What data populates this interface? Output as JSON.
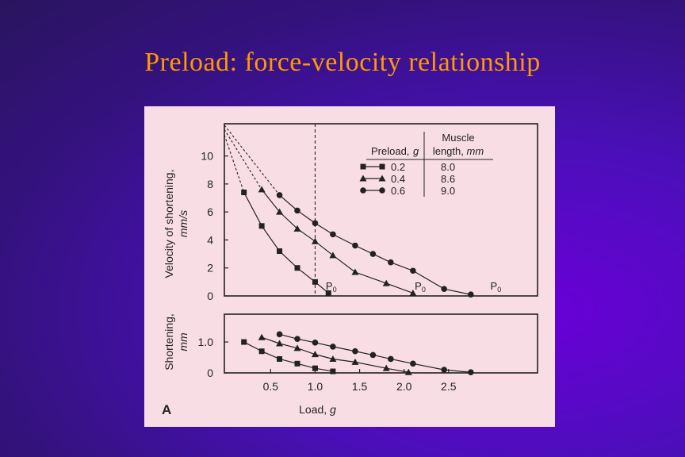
{
  "slide": {
    "title": "Preload: force-velocity relationship"
  },
  "figure": {
    "panel_label": "A"
  },
  "colors": {
    "title": "#ff9900",
    "panel": "#f9dde5",
    "ink": "#222222"
  },
  "chart_data": [
    {
      "type": "line",
      "ylabel_line1": "Velocity of shortening,",
      "ylabel_line2": "mm/s",
      "ylim": [
        0,
        12.3
      ],
      "yticks": [
        0,
        2,
        4,
        6,
        8,
        10
      ],
      "xlim": [
        -0.02,
        3.5
      ],
      "reference_line_x": 1.0,
      "legend": {
        "placement": "top-right",
        "col1_header": "Preload, g",
        "col2_header_line1": "Muscle",
        "col2_header_line2": "length, mm",
        "rows": [
          {
            "preload": "0.2",
            "length": "8.0"
          },
          {
            "preload": "0.4",
            "length": "8.6"
          },
          {
            "preload": "0.6",
            "length": "9.0"
          }
        ]
      },
      "annotations": [
        {
          "text": "P",
          "sub": "0",
          "x": 1.12,
          "y": 0.45
        },
        {
          "text": "P",
          "sub": "0",
          "x": 2.12,
          "y": 0.45
        },
        {
          "text": "P",
          "sub": "0",
          "x": 2.97,
          "y": 0.45
        }
      ],
      "series": [
        {
          "marker": "square",
          "extrapolated": [
            [
              -0.02,
              11.5
            ],
            [
              0.2,
              7.4
            ]
          ],
          "x": [
            0.2,
            0.4,
            0.6,
            0.8,
            1.0,
            1.15
          ],
          "y": [
            7.4,
            5.0,
            3.2,
            2.0,
            1.0,
            0.2
          ]
        },
        {
          "marker": "triangle",
          "extrapolated": [
            [
              -0.02,
              11.9
            ],
            [
              0.4,
              7.6
            ]
          ],
          "x": [
            0.4,
            0.6,
            0.8,
            1.0,
            1.2,
            1.45,
            1.8,
            2.1
          ],
          "y": [
            7.6,
            6.0,
            4.8,
            3.9,
            2.9,
            1.7,
            0.9,
            0.2
          ]
        },
        {
          "marker": "circle",
          "extrapolated": [
            [
              -0.02,
              12.2
            ],
            [
              0.6,
              7.2
            ]
          ],
          "x": [
            0.6,
            0.8,
            1.0,
            1.2,
            1.45,
            1.65,
            1.85,
            2.1,
            2.45,
            2.75
          ],
          "y": [
            7.2,
            6.1,
            5.2,
            4.4,
            3.6,
            3.0,
            2.4,
            1.8,
            0.5,
            0.1
          ]
        }
      ]
    },
    {
      "type": "line",
      "ylabel_line1": "Shortening,",
      "ylabel_line2": "mm",
      "xlabel": "Load, g",
      "xlim": [
        -0.02,
        3.5
      ],
      "ylim": [
        0,
        1.9
      ],
      "yticks": [
        0,
        1.0
      ],
      "ytick_labels": [
        "0",
        "1.0"
      ],
      "xticks": [
        0.5,
        1.0,
        1.5,
        2.0,
        2.5
      ],
      "xtick_labels": [
        "0.5",
        "1.0",
        "1.5",
        "2.0",
        "2.5"
      ],
      "series": [
        {
          "marker": "square",
          "x": [
            0.2,
            0.4,
            0.6,
            0.8,
            1.0,
            1.2
          ],
          "y": [
            1.0,
            0.7,
            0.45,
            0.3,
            0.15,
            0.05
          ]
        },
        {
          "marker": "triangle",
          "x": [
            0.4,
            0.6,
            0.8,
            1.0,
            1.2,
            1.45,
            1.8,
            2.05
          ],
          "y": [
            1.15,
            0.95,
            0.8,
            0.6,
            0.45,
            0.35,
            0.15,
            0.02
          ]
        },
        {
          "marker": "circle",
          "x": [
            0.6,
            0.8,
            1.0,
            1.2,
            1.45,
            1.65,
            1.85,
            2.1,
            2.45,
            2.75
          ],
          "y": [
            1.25,
            1.1,
            0.98,
            0.85,
            0.7,
            0.58,
            0.45,
            0.3,
            0.1,
            0.02
          ]
        }
      ]
    }
  ]
}
